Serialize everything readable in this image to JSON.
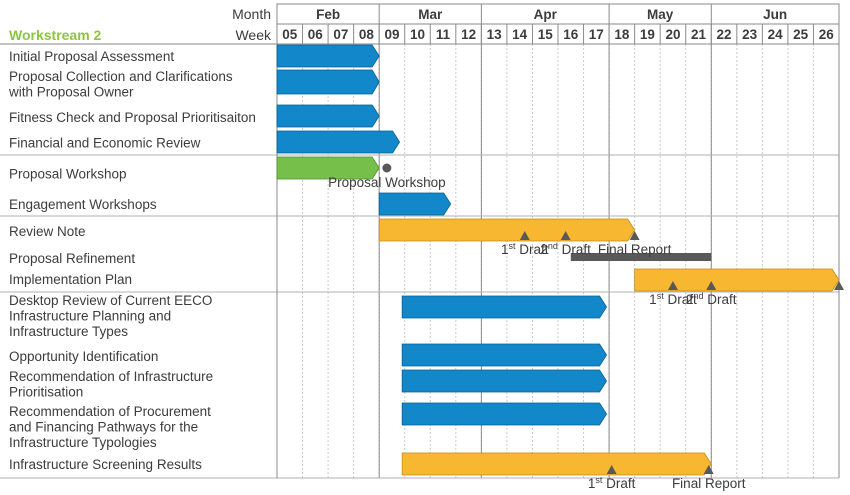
{
  "header": {
    "month_label": "Month",
    "week_label": "Week",
    "workstream_title": "Workstream 2"
  },
  "colors": {
    "blue": "#1287c9",
    "orange": "#f7b731",
    "green": "#76bf4b",
    "gray_bar": "#595959",
    "title_green": "#8cc63f",
    "marker": "#595959"
  },
  "chart_data": {
    "type": "gantt",
    "months": [
      {
        "name": "Feb",
        "start_week": 5,
        "end_week": 8
      },
      {
        "name": "Mar",
        "start_week": 9,
        "end_week": 12
      },
      {
        "name": "Apr",
        "start_week": 13,
        "end_week": 17
      },
      {
        "name": "May",
        "start_week": 18,
        "end_week": 21
      },
      {
        "name": "Jun",
        "start_week": 22,
        "end_week": 26
      }
    ],
    "weeks": [
      "05",
      "06",
      "07",
      "08",
      "09",
      "10",
      "11",
      "12",
      "13",
      "14",
      "15",
      "16",
      "17",
      "18",
      "19",
      "20",
      "21",
      "22",
      "23",
      "24",
      "25",
      "26"
    ],
    "tasks": [
      {
        "label": [
          "Initial Proposal Assessment"
        ],
        "bar": {
          "start": 5,
          "end": 9,
          "color": "blue"
        }
      },
      {
        "label": [
          "Proposal Collection and Clarifications",
          "with Proposal Owner"
        ],
        "bar": {
          "start": 5,
          "end": 9,
          "color": "blue"
        }
      },
      {
        "label": [
          "Fitness Check and Proposal Prioritisaiton"
        ],
        "bar": {
          "start": 5,
          "end": 9,
          "color": "blue"
        }
      },
      {
        "label": [
          "Financial and Economic Review"
        ],
        "bar": {
          "start": 5,
          "end": 9.8,
          "color": "blue"
        }
      },
      {
        "label": [
          "Proposal Workshop"
        ],
        "bar": {
          "start": 5,
          "end": 9,
          "color": "green"
        },
        "milestones": [
          {
            "week": 9.3,
            "shape": "circle",
            "label": "Proposal Workshop"
          }
        ]
      },
      {
        "label": [
          "Engagement Workshops"
        ],
        "bar": {
          "start": 9,
          "end": 11.8,
          "color": "blue"
        }
      },
      {
        "label": [
          "Review Note"
        ],
        "bar": {
          "start": 9,
          "end": 19,
          "color": "orange"
        },
        "milestones": [
          {
            "week": 14.7,
            "shape": "triangle",
            "label": "1",
            "sup": "st",
            "suffix": " Draft"
          },
          {
            "week": 16.3,
            "shape": "triangle",
            "label": "2",
            "sup": "nd",
            "suffix": " Draft"
          },
          {
            "week": 19,
            "shape": "triangle",
            "label": "Final Report"
          }
        ]
      },
      {
        "label": [
          "Proposal Refinement"
        ],
        "bar": {
          "start": 16.5,
          "end": 22,
          "color": "gray"
        }
      },
      {
        "label": [
          "Implementation Plan"
        ],
        "bar": {
          "start": 19,
          "end": 27,
          "color": "orange"
        },
        "milestones": [
          {
            "week": 20.5,
            "shape": "triangle",
            "label": "1",
            "sup": "st",
            "suffix": " Draft"
          },
          {
            "week": 22,
            "shape": "triangle",
            "label": "2",
            "sup": "nd",
            "suffix": " Draft"
          },
          {
            "week": 27,
            "shape": "triangle",
            "label": ""
          }
        ]
      },
      {
        "label": [
          "Desktop Review of Current EECO",
          "Infrastructure Planning and",
          "Infrastructure Types"
        ],
        "bar": {
          "start": 9.9,
          "end": 17.9,
          "color": "blue"
        }
      },
      {
        "label": [
          "Opportunity Identification"
        ],
        "bar": {
          "start": 9.9,
          "end": 17.9,
          "color": "blue"
        }
      },
      {
        "label": [
          "Recommendation of Infrastructure",
          "Prioritisation"
        ],
        "bar": {
          "start": 9.9,
          "end": 17.9,
          "color": "blue"
        }
      },
      {
        "label": [
          "Recommendation of Procurement",
          "and Financing Pathways for the",
          "Infrastructure Typologies"
        ],
        "bar": {
          "start": 9.9,
          "end": 17.9,
          "color": "blue"
        }
      },
      {
        "label": [
          "Infrastructure Screening Results"
        ],
        "bar": {
          "start": 9.9,
          "end": 22,
          "color": "orange"
        },
        "milestones": [
          {
            "week": 18.1,
            "shape": "triangle",
            "label": "1",
            "sup": "st",
            "suffix": " Draft"
          },
          {
            "week": 21.9,
            "shape": "triangle",
            "label": "Final Report"
          }
        ]
      }
    ]
  }
}
